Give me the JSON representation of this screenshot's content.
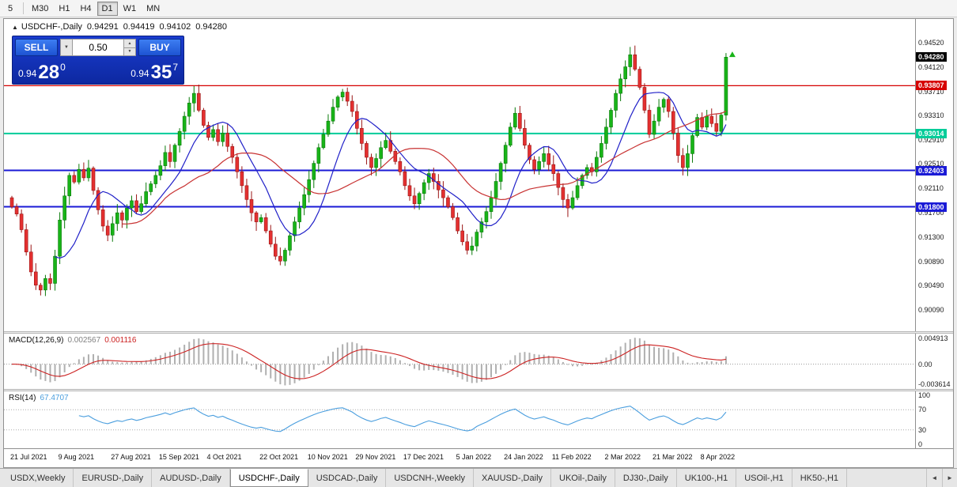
{
  "toolbar": {
    "timeframes": [
      {
        "label": "5",
        "active": false
      },
      {
        "label": "M30",
        "active": false
      },
      {
        "label": "H1",
        "active": false
      },
      {
        "label": "H4",
        "active": false
      },
      {
        "label": "D1",
        "active": true
      },
      {
        "label": "W1",
        "active": false
      },
      {
        "label": "MN",
        "active": false
      }
    ]
  },
  "chart": {
    "title": {
      "symbol": "USDCHF-,Daily",
      "open": "0.94291",
      "high": "0.94419",
      "low": "0.94102",
      "close": "0.94280"
    },
    "trade_panel": {
      "sell_label": "SELL",
      "buy_label": "BUY",
      "volume": "0.50",
      "bid_prefix": "0.94",
      "bid_big": "28",
      "bid_sup": "0",
      "ask_prefix": "0.94",
      "ask_big": "35",
      "ask_sup": "7"
    },
    "price_axis_ticks": [
      "0.94520",
      "0.94120",
      "0.93710",
      "0.93310",
      "0.92910",
      "0.92510",
      "0.92110",
      "0.91700",
      "0.91300",
      "0.90890",
      "0.90490",
      "0.90090"
    ],
    "price_badges": [
      {
        "label": "0.94280",
        "price": 0.9428,
        "bg": "#000000",
        "fg": "#ffffff"
      },
      {
        "label": "0.93807",
        "price": 0.93807,
        "bg": "#d60000",
        "fg": "#ffffff"
      },
      {
        "label": "0.93014",
        "price": 0.93014,
        "bg": "#00cc99",
        "fg": "#ffffff"
      },
      {
        "label": "0.92403",
        "price": 0.92403,
        "bg": "#1a1ad6",
        "fg": "#ffffff"
      },
      {
        "label": "0.91800",
        "price": 0.918,
        "bg": "#1a1ad6",
        "fg": "#ffffff"
      }
    ],
    "levels": [
      {
        "price": 0.93807,
        "color": "#d60000",
        "w": 1.2
      },
      {
        "price": 0.93014,
        "color": "#00cc99",
        "w": 2
      },
      {
        "price": 0.92403,
        "color": "#1a1ad6",
        "w": 2
      },
      {
        "price": 0.918,
        "color": "#1a1ad6",
        "w": 2
      }
    ]
  },
  "indicators": {
    "macd": {
      "label": "MACD(12,26,9)",
      "value": "0.002567",
      "signal_value": "0.001116",
      "axis_top": "0.004913",
      "axis_zero": "0.00",
      "axis_bottom": "-0.003614"
    },
    "rsi": {
      "label": "RSI(14)",
      "value": "67.4707",
      "axis": [
        "100",
        "70",
        "30",
        "0"
      ]
    }
  },
  "chart_data": {
    "type": "candlestick",
    "symbol": "USDCHF-",
    "period": "Daily",
    "ylim": [
      0.9009,
      0.9452
    ],
    "first_open": 0.9195,
    "current_price": 0.9428,
    "closes": [
      0.918,
      0.9168,
      0.9142,
      0.9105,
      0.9072,
      0.905,
      0.9042,
      0.9061,
      0.9053,
      0.9098,
      0.9158,
      0.9198,
      0.9232,
      0.9221,
      0.9242,
      0.9228,
      0.9244,
      0.9207,
      0.9175,
      0.9148,
      0.9133,
      0.9152,
      0.917,
      0.9158,
      0.9178,
      0.919,
      0.9172,
      0.9185,
      0.9205,
      0.9218,
      0.9232,
      0.9248,
      0.927,
      0.9255,
      0.9282,
      0.9305,
      0.933,
      0.9352,
      0.9368,
      0.934,
      0.9315,
      0.9295,
      0.9308,
      0.9288,
      0.9302,
      0.928,
      0.9262,
      0.9238,
      0.9215,
      0.9192,
      0.917,
      0.9155,
      0.9162,
      0.914,
      0.9118,
      0.9098,
      0.909,
      0.9108,
      0.9132,
      0.9155,
      0.9178,
      0.92,
      0.9225,
      0.9252,
      0.9278,
      0.93,
      0.9322,
      0.9345,
      0.9362,
      0.937,
      0.9355,
      0.9338,
      0.931,
      0.9285,
      0.9262,
      0.9245,
      0.926,
      0.9278,
      0.929,
      0.9272,
      0.9255,
      0.9238,
      0.9215,
      0.9198,
      0.9185,
      0.9202,
      0.922,
      0.9235,
      0.9222,
      0.9208,
      0.9195,
      0.918,
      0.9162,
      0.914,
      0.9122,
      0.9108,
      0.9115,
      0.9138,
      0.9155,
      0.9172,
      0.9195,
      0.9222,
      0.9252,
      0.9282,
      0.9312,
      0.9335,
      0.931,
      0.9282,
      0.9258,
      0.9242,
      0.9255,
      0.9268,
      0.925,
      0.9235,
      0.9212,
      0.9192,
      0.9178,
      0.9195,
      0.9215,
      0.9232,
      0.9245,
      0.9238,
      0.9262,
      0.9285,
      0.9312,
      0.934,
      0.9368,
      0.9392,
      0.9412,
      0.9432,
      0.9408,
      0.9378,
      0.934,
      0.93,
      0.9322,
      0.9345,
      0.9358,
      0.9338,
      0.9302,
      0.9265,
      0.9245,
      0.9268,
      0.9298,
      0.9328,
      0.9312,
      0.933,
      0.9318,
      0.9305,
      0.9332,
      0.9428
    ],
    "x_labels": [
      "21 Jul 2021",
      "9 Aug 2021",
      "27 Aug 2021",
      "15 Sep 2021",
      "4 Oct 2021",
      "22 Oct 2021",
      "10 Nov 2021",
      "29 Nov 2021",
      "17 Dec 2021",
      "5 Jan 2022",
      "24 Jan 2022",
      "11 Feb 2022",
      "2 Mar 2022",
      "21 Mar 2022",
      "8 Apr 2022"
    ],
    "x_label_indices": [
      0,
      10,
      21,
      31,
      41,
      52,
      62,
      72,
      82,
      93,
      103,
      113,
      124,
      134,
      144
    ],
    "ma_periods": [
      10,
      24
    ],
    "macd_params": [
      12,
      26,
      9
    ],
    "macd_ylim": [
      -0.003614,
      0.004913
    ],
    "rsi_period": 14,
    "rsi_levels": [
      70,
      30
    ]
  },
  "icons": {
    "dropdown": "▼",
    "spin_up": "▲",
    "spin_down": "▼",
    "scroll_left": "◄",
    "scroll_right": "►",
    "one_click_toggle": "▲"
  },
  "colors": {
    "up": "#18b418",
    "up_stroke": "#0a7a0a",
    "down": "#e43030",
    "down_stroke": "#9a1515",
    "ma_fast": "#2020c8",
    "ma_slow": "#c83232",
    "macd_hist": "#b0b0b0",
    "macd_signal": "#cc2222",
    "rsi_line": "#4a9ede",
    "level_dotted": "#aaaaaa"
  },
  "tabs": [
    {
      "label": "USDX,Weekly",
      "active": false
    },
    {
      "label": "EURUSD-,Daily",
      "active": false
    },
    {
      "label": "AUDUSD-,Daily",
      "active": false
    },
    {
      "label": "USDCHF-,Daily",
      "active": true
    },
    {
      "label": "USDCAD-,Daily",
      "active": false
    },
    {
      "label": "USDCNH-,Weekly",
      "active": false
    },
    {
      "label": "XAUUSD-,Daily",
      "active": false
    },
    {
      "label": "UKOil-,Daily",
      "active": false
    },
    {
      "label": "DJ30-,Daily",
      "active": false
    },
    {
      "label": "UK100-,H1",
      "active": false
    },
    {
      "label": "USOil-,H1",
      "active": false
    },
    {
      "label": "HK50-,H1",
      "active": false
    }
  ]
}
